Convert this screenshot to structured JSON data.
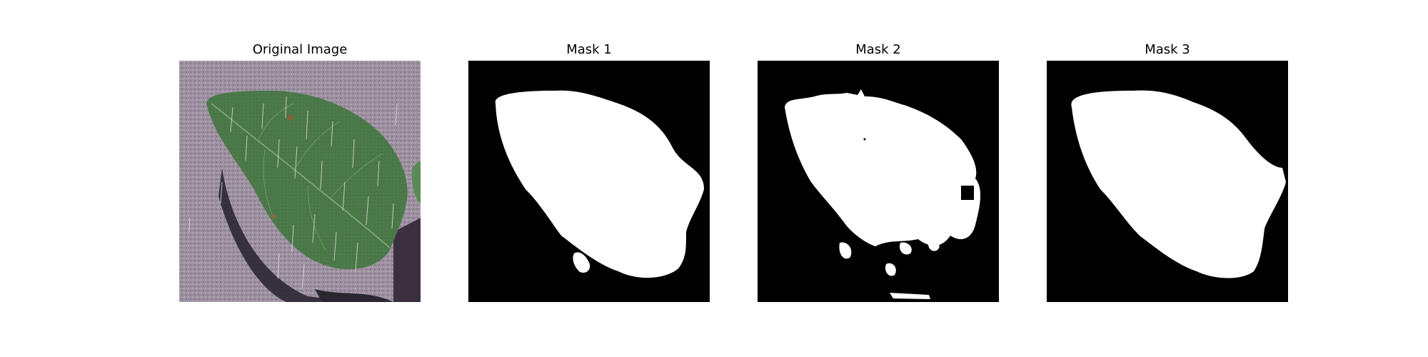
{
  "panels": [
    {
      "title": "Original Image",
      "kind": "photo"
    },
    {
      "title": "Mask 1",
      "kind": "mask"
    },
    {
      "title": "Mask 2",
      "kind": "mask"
    },
    {
      "title": "Mask 3",
      "kind": "mask"
    }
  ],
  "colors": {
    "background": "#ffffff",
    "mask_background": "#000000",
    "mask_foreground": "#ffffff",
    "leaf": "#4f7a4a",
    "leaf_dark": "#38593a",
    "surface": "#9a8d9e",
    "shadow": "#2a2630"
  }
}
